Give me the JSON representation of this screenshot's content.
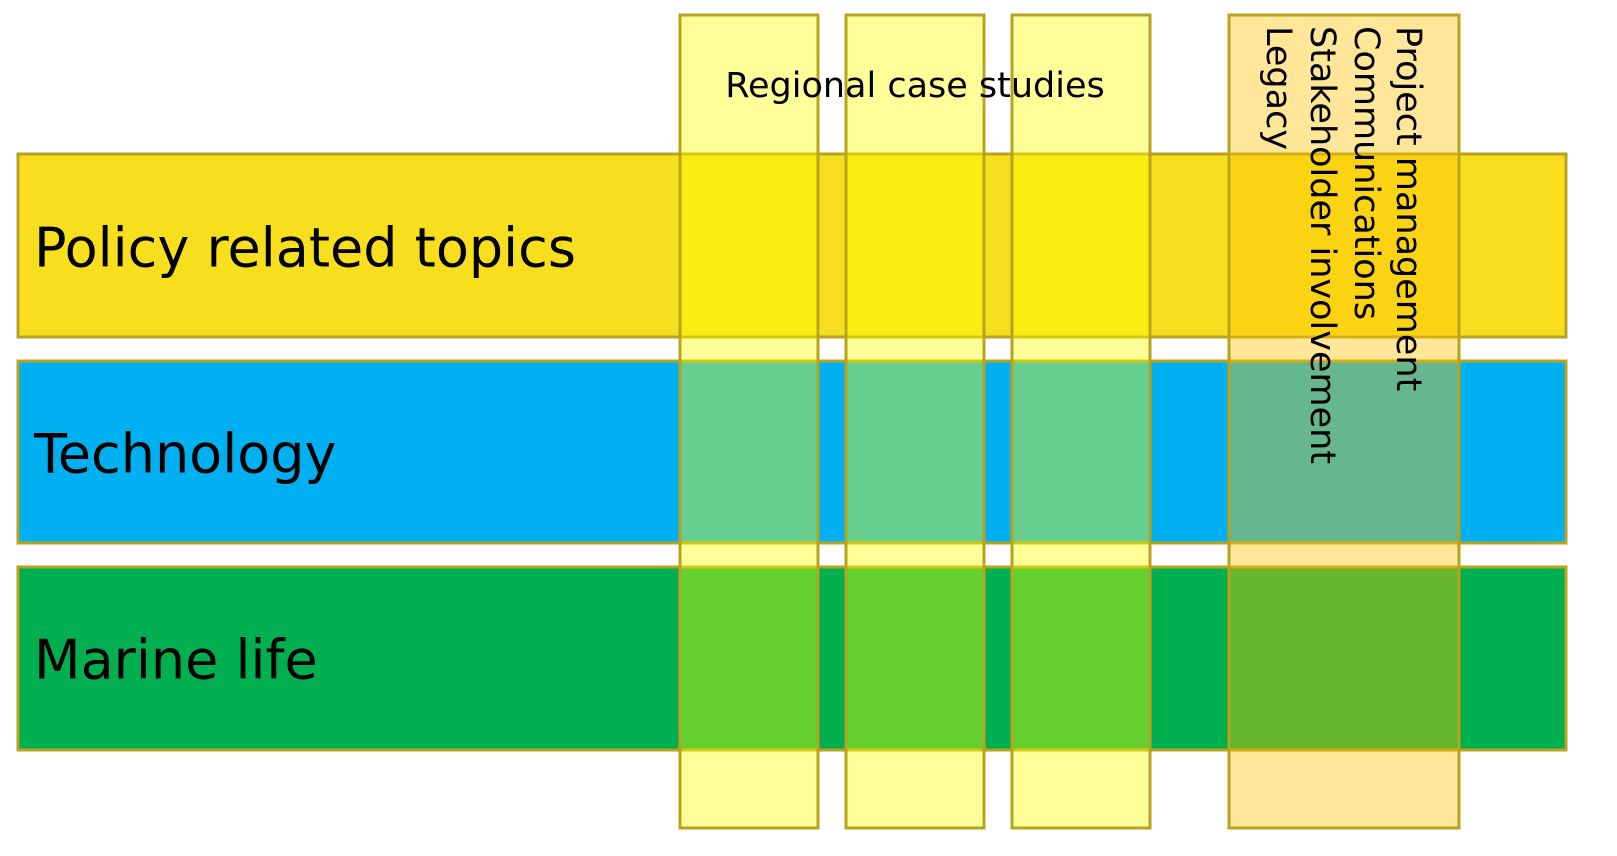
{
  "rows": [
    {
      "label": "Policy related topics"
    },
    {
      "label": "Technology"
    },
    {
      "label": "Marine life"
    }
  ],
  "column_header": "Regional case studies",
  "side_labels": [
    "Project management",
    "Communications",
    "Stakeholder involvement",
    "Legacy"
  ]
}
